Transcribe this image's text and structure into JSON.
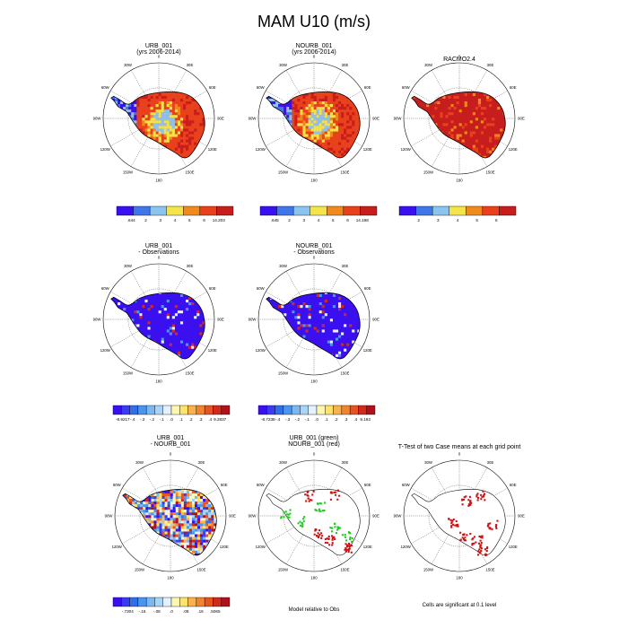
{
  "page": {
    "title": "MAM U10 (m/s)"
  },
  "lon_labels": [
    "0",
    "30E",
    "60E",
    "90E",
    "120E",
    "150E",
    "180",
    "150W",
    "120W",
    "90W",
    "60W",
    "30W"
  ],
  "colors": {
    "ocean": "#ffffff",
    "coast": "#000000",
    "wind_scale": [
      "#3a0ff0",
      "#3f76ea",
      "#8cc4f0",
      "#f5e34a",
      "#f08a1c",
      "#e8411c",
      "#c81d1d"
    ],
    "bias_scale": [
      "#3a0ff0",
      "#3b3cf2",
      "#2f6fea",
      "#4a95ee",
      "#7ab8f3",
      "#a8d4f6",
      "#e6f1ff",
      "#fff7b0",
      "#fde36a",
      "#fbb24a",
      "#f3842b",
      "#e8541f",
      "#d22a1c",
      "#b2101a"
    ],
    "diff_scale": [
      "#3a0ff0",
      "#3b3cf2",
      "#2f6fea",
      "#4a95ee",
      "#7ab8f3",
      "#a8d4f6",
      "#e6f1ff",
      "#fff7b0",
      "#fde36a",
      "#fbb24a",
      "#f3842b",
      "#e8541f",
      "#d22a1c",
      "#b2101a"
    ],
    "sig_green": "#22cc22",
    "sig_red": "#d01010"
  },
  "panels": [
    {
      "id": "urb",
      "title": "URB_001",
      "subtitle": "(yrs 2006-2014)",
      "fill": "wind",
      "colorbar": {
        "scale": "wind_scale",
        "labels": [
          ".644",
          "2",
          "3",
          "4",
          "5",
          "6",
          "14.203"
        ]
      }
    },
    {
      "id": "nourb",
      "title": "NOURB_001",
      "subtitle": "(yrs 2006-2014)",
      "fill": "wind",
      "colorbar": {
        "scale": "wind_scale",
        "labels": [
          ".645",
          "2",
          "3",
          "4",
          "5",
          "6",
          "14.198"
        ]
      }
    },
    {
      "id": "racmo",
      "title": "RACMO2.4",
      "subtitle": "",
      "fill": "racmo",
      "colorbar": {
        "scale": "wind_scale",
        "labels": [
          "2",
          "3",
          "4",
          "5",
          "6"
        ]
      }
    },
    {
      "id": "urb_obs",
      "title": "URB_001",
      "subtitle": "- Observations",
      "fill": "bias",
      "colorbar": {
        "scale": "bias_scale",
        "labels": [
          "-8.9217",
          "-.4",
          "-.3",
          "-.2",
          "-.1",
          ".0",
          ".1",
          ".2",
          ".3",
          ".4",
          "9.2837"
        ]
      }
    },
    {
      "id": "nourb_obs",
      "title": "NOURB_001",
      "subtitle": "- Observations",
      "fill": "bias",
      "colorbar": {
        "scale": "bias_scale",
        "labels": [
          "-8.7238",
          "-.4",
          "-.3",
          "-.2",
          "-.1",
          ".0",
          ".1",
          ".2",
          ".3",
          ".4",
          "9.193"
        ]
      }
    },
    {
      "id": "diff",
      "title": "URB_001",
      "subtitle": "- NOURB_001",
      "fill": "diff",
      "colorbar": {
        "scale": "diff_scale",
        "labels": [
          "-.7304",
          "-.16",
          "-.08",
          ".0",
          ".08",
          ".16",
          ".5065"
        ]
      }
    },
    {
      "id": "rel_obs",
      "title": "URB_001 (green)",
      "subtitle": "NOURB_001 (red)",
      "fill": "sig2",
      "footnote": "Model relative to Obs"
    },
    {
      "id": "ttest",
      "title": "T-Test of two Case means at each grid point",
      "subtitle": "",
      "fill": "sig1",
      "footnote": "Cells are significant at 0.1 level"
    }
  ]
}
